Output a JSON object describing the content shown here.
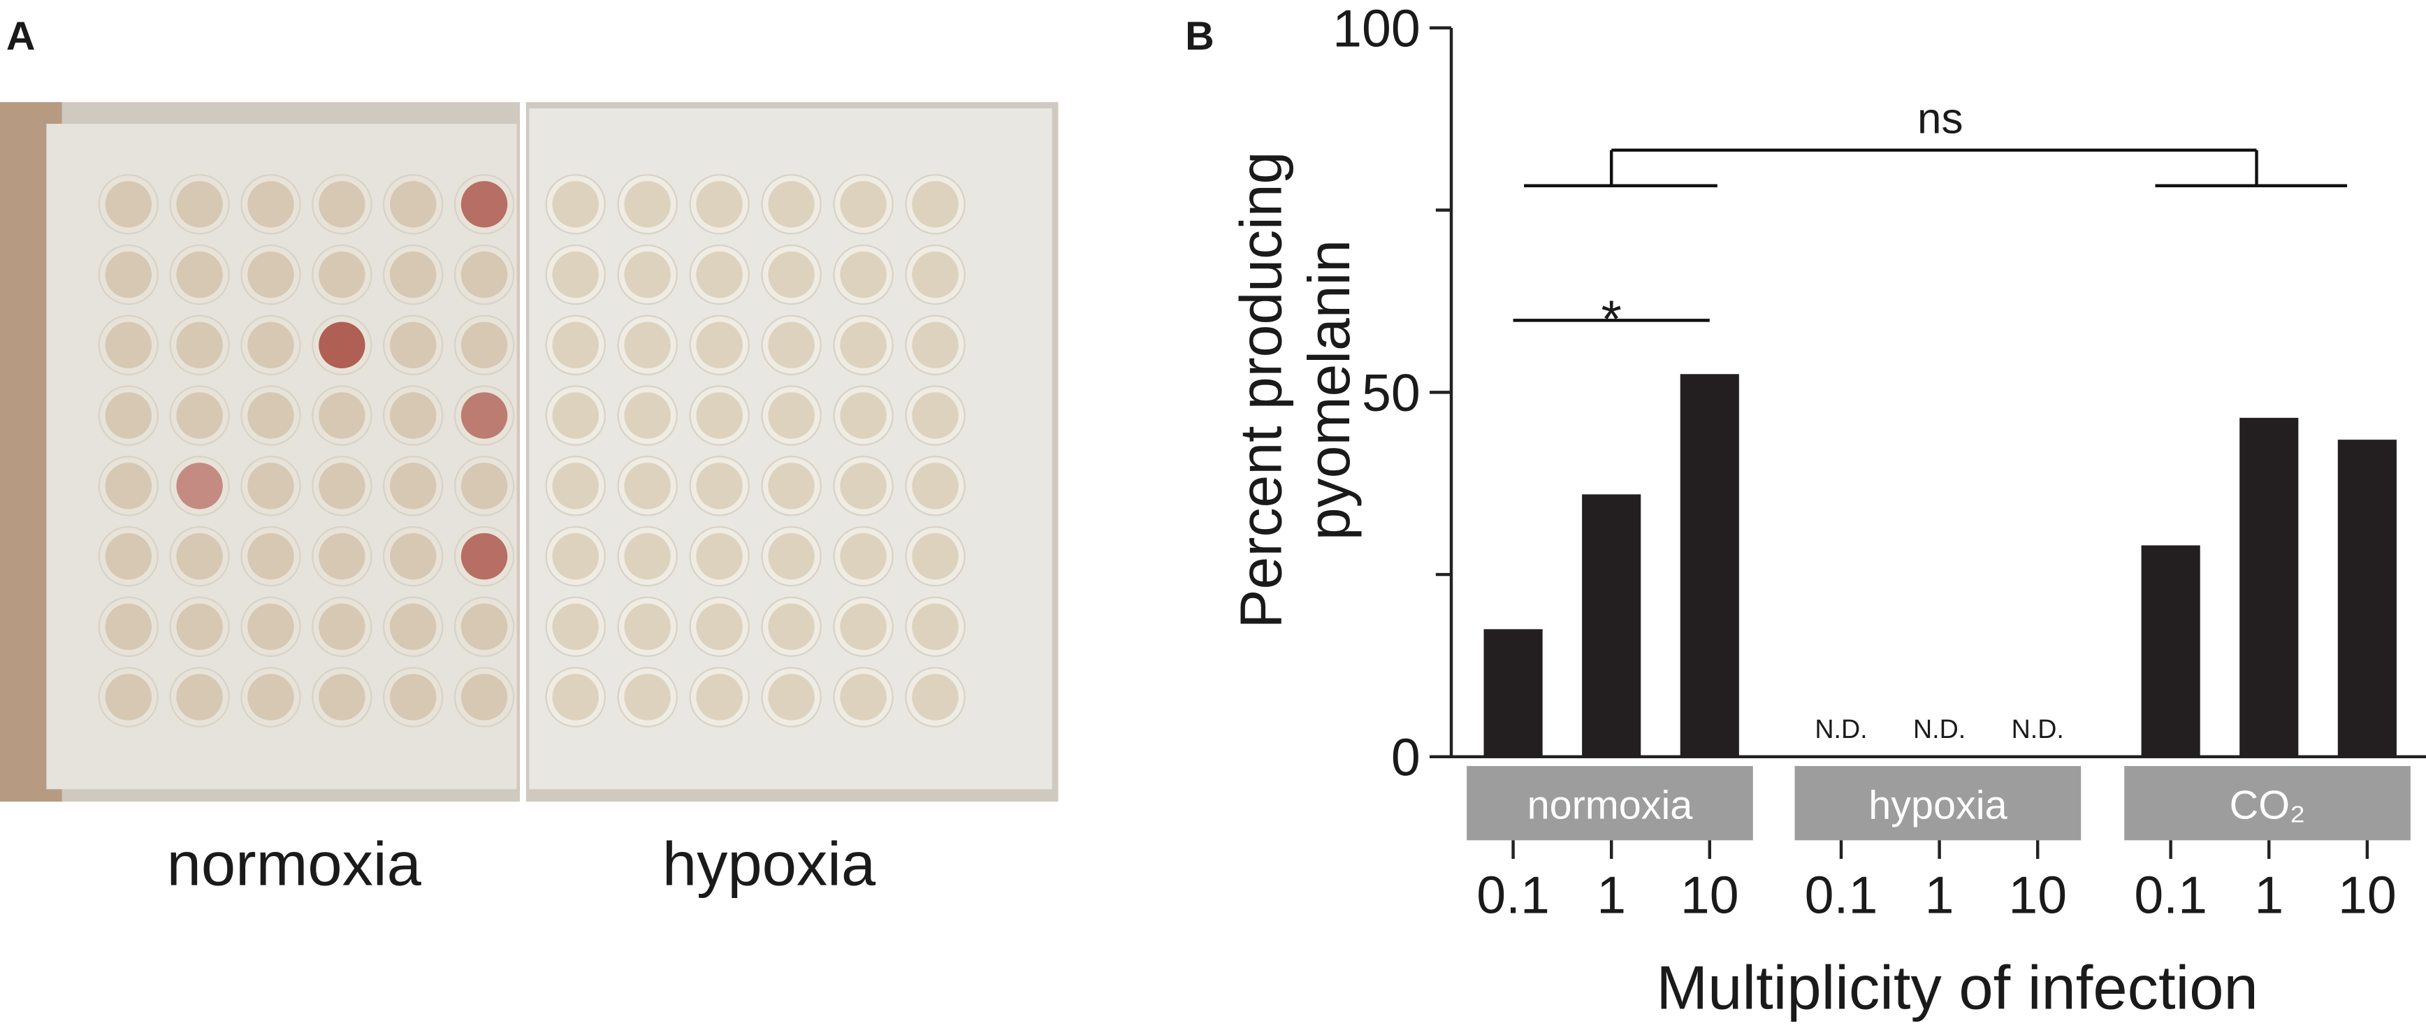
{
  "panel_a": {
    "label": "A",
    "captions": [
      "normoxia",
      "hypoxia"
    ]
  },
  "chart_data": {
    "type": "bar",
    "label": "B",
    "ylabel": [
      "Percent producing",
      "pyomelanin"
    ],
    "xlabel": "Multiplicity of infection",
    "groups": [
      "normoxia",
      "hypoxia",
      "CO₂"
    ],
    "categories": [
      "0.1",
      "1",
      "10",
      "0.1",
      "1",
      "10",
      "0.1",
      "1",
      "10"
    ],
    "values": [
      17.5,
      36,
      52.5,
      null,
      null,
      null,
      29,
      46.5,
      43.5
    ],
    "value_labels": [
      null,
      null,
      null,
      "N.D.",
      "N.D.",
      "N.D.",
      null,
      null,
      null
    ],
    "color": "#231f20",
    "ylim": [
      0,
      100
    ],
    "yticks": [
      0,
      50,
      100
    ],
    "minor_yticks": [
      25,
      75
    ],
    "annotations": [
      "ns",
      "*"
    ]
  }
}
